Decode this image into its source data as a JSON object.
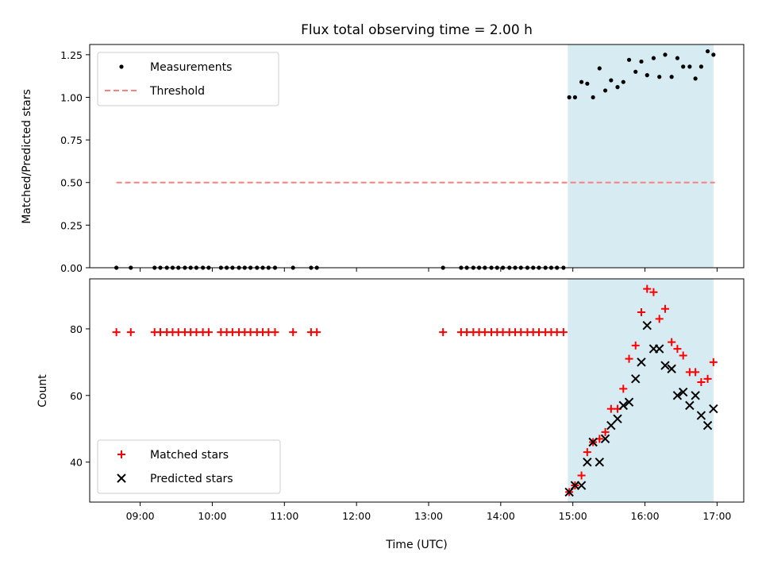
{
  "title": "Flux total observing time = 2.00 h",
  "colors": {
    "measurement": "#000000",
    "threshold": "#ff7f7f",
    "matched": "#ff0000",
    "predicted": "#000000",
    "shade": "#add8e6"
  },
  "chart_data": [
    {
      "type": "scatter",
      "ylabel": "Matched/Predicted stars",
      "xlim": [
        8.3,
        17.37
      ],
      "ylim": [
        0,
        1.31
      ],
      "yticks": [
        0.0,
        0.25,
        0.5,
        0.75,
        1.0,
        1.25
      ],
      "ytick_labels": [
        "0.00",
        "0.25",
        "0.50",
        "0.75",
        "1.00",
        "1.25"
      ],
      "shaded_span": [
        14.93,
        16.95
      ],
      "legend": {
        "position": "upper-left",
        "entries": [
          "Measurements",
          "Threshold"
        ]
      },
      "threshold": {
        "name": "Threshold",
        "y": 0.5,
        "x_range": [
          8.67,
          16.97
        ]
      },
      "series": [
        {
          "name": "Measurements",
          "x": [
            8.67,
            8.87,
            9.2,
            9.28,
            9.37,
            9.45,
            9.53,
            9.62,
            9.7,
            9.78,
            9.87,
            9.95,
            10.12,
            10.2,
            10.28,
            10.37,
            10.45,
            10.53,
            10.62,
            10.7,
            10.78,
            10.87,
            11.12,
            11.37,
            11.45,
            13.2,
            13.45,
            13.53,
            13.62,
            13.7,
            13.78,
            13.87,
            13.95,
            14.03,
            14.12,
            14.2,
            14.28,
            14.37,
            14.45,
            14.53,
            14.62,
            14.7,
            14.78,
            14.87,
            14.95,
            15.03,
            15.12,
            15.2,
            15.28,
            15.37,
            15.45,
            15.53,
            15.62,
            15.7,
            15.78,
            15.87,
            15.95,
            16.03,
            16.12,
            16.2,
            16.28,
            16.37,
            16.45,
            16.53,
            16.62,
            16.7,
            16.78,
            16.87,
            16.95
          ],
          "y": [
            0,
            0,
            0,
            0,
            0,
            0,
            0,
            0,
            0,
            0,
            0,
            0,
            0,
            0,
            0,
            0,
            0,
            0,
            0,
            0,
            0,
            0,
            0,
            0,
            0,
            0,
            0,
            0,
            0,
            0,
            0,
            0,
            0,
            0,
            0,
            0,
            0,
            0,
            0,
            0,
            0,
            0,
            0,
            0,
            1.0,
            1.0,
            1.09,
            1.08,
            1.0,
            1.17,
            1.04,
            1.1,
            1.06,
            1.09,
            1.22,
            1.15,
            1.21,
            1.13,
            1.23,
            1.12,
            1.25,
            1.12,
            1.23,
            1.18,
            1.18,
            1.11,
            1.18,
            1.27,
            1.25
          ]
        }
      ]
    },
    {
      "type": "scatter",
      "xlabel": "Time (UTC)",
      "ylabel": "Count",
      "xlim": [
        8.3,
        17.37
      ],
      "ylim": [
        28,
        95
      ],
      "yticks": [
        40,
        60,
        80
      ],
      "ytick_labels": [
        "40",
        "60",
        "80"
      ],
      "xticks": [
        9,
        10,
        11,
        12,
        13,
        14,
        15,
        16,
        17
      ],
      "xtick_labels": [
        "09:00",
        "10:00",
        "11:00",
        "12:00",
        "13:00",
        "14:00",
        "15:00",
        "16:00",
        "17:00"
      ],
      "shaded_span": [
        14.93,
        16.95
      ],
      "legend": {
        "position": "lower-left",
        "entries": [
          "Matched stars",
          "Predicted stars"
        ]
      },
      "series": [
        {
          "name": "Matched stars",
          "x": [
            8.67,
            8.87,
            9.2,
            9.28,
            9.37,
            9.45,
            9.53,
            9.62,
            9.7,
            9.78,
            9.87,
            9.95,
            10.12,
            10.2,
            10.28,
            10.37,
            10.45,
            10.53,
            10.62,
            10.7,
            10.78,
            10.87,
            11.12,
            11.37,
            11.45,
            13.2,
            13.45,
            13.53,
            13.62,
            13.7,
            13.78,
            13.87,
            13.95,
            14.03,
            14.12,
            14.2,
            14.28,
            14.37,
            14.45,
            14.53,
            14.62,
            14.7,
            14.78,
            14.87,
            14.95,
            15.03,
            15.12,
            15.2,
            15.28,
            15.37,
            15.45,
            15.53,
            15.62,
            15.7,
            15.78,
            15.87,
            15.95,
            16.03,
            16.12,
            16.2,
            16.28,
            16.37,
            16.45,
            16.53,
            16.62,
            16.7,
            16.78,
            16.87,
            16.95
          ],
          "y": [
            79,
            79,
            79,
            79,
            79,
            79,
            79,
            79,
            79,
            79,
            79,
            79,
            79,
            79,
            79,
            79,
            79,
            79,
            79,
            79,
            79,
            79,
            79,
            79,
            79,
            79,
            79,
            79,
            79,
            79,
            79,
            79,
            79,
            79,
            79,
            79,
            79,
            79,
            79,
            79,
            79,
            79,
            79,
            79,
            31,
            33,
            36,
            43,
            46,
            47,
            49,
            56,
            56,
            62,
            71,
            75,
            85,
            92,
            91,
            83,
            86,
            76,
            74,
            72,
            67,
            67,
            64,
            65,
            70
          ]
        },
        {
          "name": "Predicted stars",
          "x": [
            14.95,
            15.03,
            15.12,
            15.2,
            15.28,
            15.37,
            15.45,
            15.53,
            15.62,
            15.7,
            15.78,
            15.87,
            15.95,
            16.03,
            16.12,
            16.2,
            16.28,
            16.37,
            16.45,
            16.53,
            16.62,
            16.7,
            16.78,
            16.87,
            16.95
          ],
          "y": [
            31,
            33,
            33,
            40,
            46,
            40,
            47,
            51,
            53,
            57,
            58,
            65,
            70,
            81,
            74,
            74,
            69,
            68,
            60,
            61,
            57,
            60,
            54,
            51,
            56
          ]
        }
      ]
    }
  ]
}
